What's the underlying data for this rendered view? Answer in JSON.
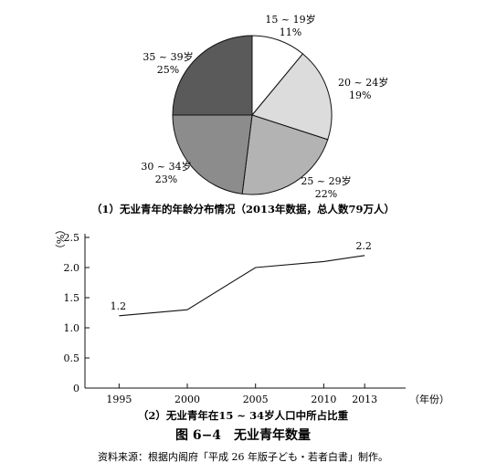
{
  "figure": {
    "title": "图 6−4　无业青年数量",
    "source": "资料来源：根据内阁府「平成 26 年版子ども・若者白書」制作。"
  },
  "chart_data": [
    {
      "type": "pie",
      "title": "（1）无业青年的年龄分布情况（2013年数据，总人数79万人）",
      "slices": [
        {
          "label": "15 ~ 19岁",
          "value": 11,
          "value_label": "11%",
          "color": "#ffffff"
        },
        {
          "label": "20 ~ 24岁",
          "value": 19,
          "value_label": "19%",
          "color": "#dcdcdc"
        },
        {
          "label": "25 ~ 29岁",
          "value": 22,
          "value_label": "22%",
          "color": "#b3b3b3"
        },
        {
          "label": "30 ~ 34岁",
          "value": 23,
          "value_label": "23%",
          "color": "#8c8c8c"
        },
        {
          "label": "35 ~ 39岁",
          "value": 25,
          "value_label": "25%",
          "color": "#5a5a5a"
        }
      ]
    },
    {
      "type": "line",
      "title": "（2）无业青年在15 ~ 34岁人口中所占比重",
      "ylabel": "（%）",
      "xlabel": "（年份）",
      "x": [
        "1995",
        "2000",
        "2005",
        "2010",
        "2013"
      ],
      "series": [
        {
          "values": [
            1.2,
            1.3,
            2.0,
            2.1,
            2.2
          ]
        }
      ],
      "ylim": [
        0,
        2.5
      ],
      "yticks": [
        "0",
        "0.5",
        "1.0",
        "1.5",
        "2.0",
        "2.5"
      ],
      "annotations": [
        {
          "x": "1995",
          "text": "1.2"
        },
        {
          "x": "2013",
          "text": "2.2"
        }
      ],
      "grid": false
    }
  ]
}
